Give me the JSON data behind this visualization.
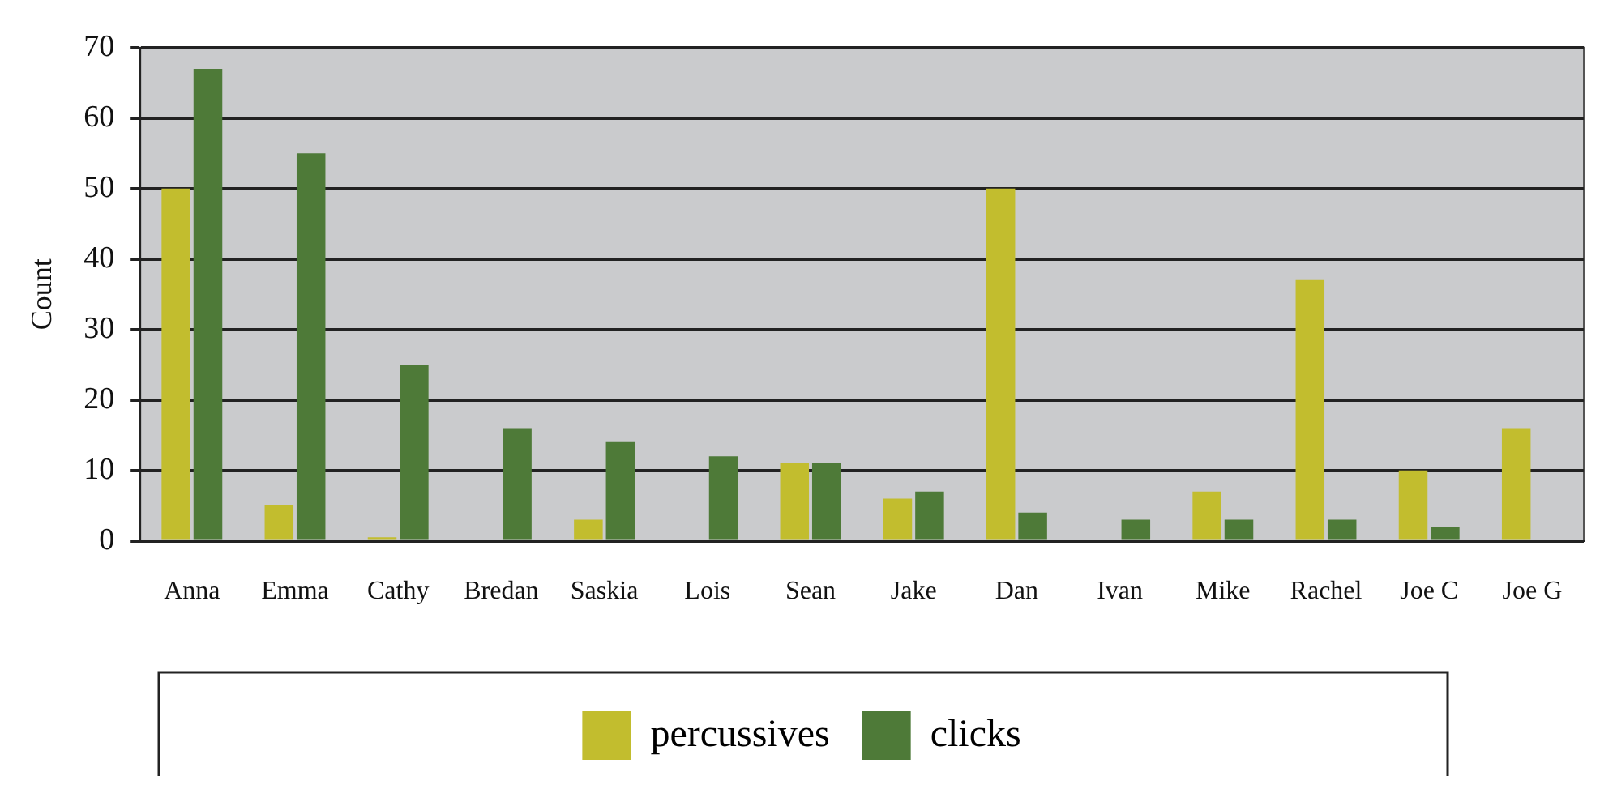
{
  "chart_data": {
    "type": "bar",
    "ylabel": "Count",
    "categories": [
      "Anna",
      "Emma",
      "Cathy",
      "Bredan",
      "Saskia",
      "Lois",
      "Sean",
      "Jake",
      "Dan",
      "Ivan",
      "Mike",
      "Rachel",
      "Joe C",
      "Joe G"
    ],
    "series": [
      {
        "name": "percussives",
        "color": "#c2bd2e",
        "values": [
          50,
          5,
          0.5,
          null,
          3,
          null,
          11,
          6,
          50,
          null,
          7,
          37,
          10,
          16
        ]
      },
      {
        "name": "clicks",
        "color": "#4e7a38",
        "values": [
          67,
          55,
          25,
          16,
          14,
          12,
          11,
          7,
          4,
          3,
          3,
          3,
          2,
          null
        ]
      }
    ],
    "ylim": [
      0,
      70
    ],
    "yticks": [
      0,
      10,
      20,
      30,
      40,
      50,
      60,
      70
    ],
    "grid": "y",
    "legend": "bottom"
  }
}
